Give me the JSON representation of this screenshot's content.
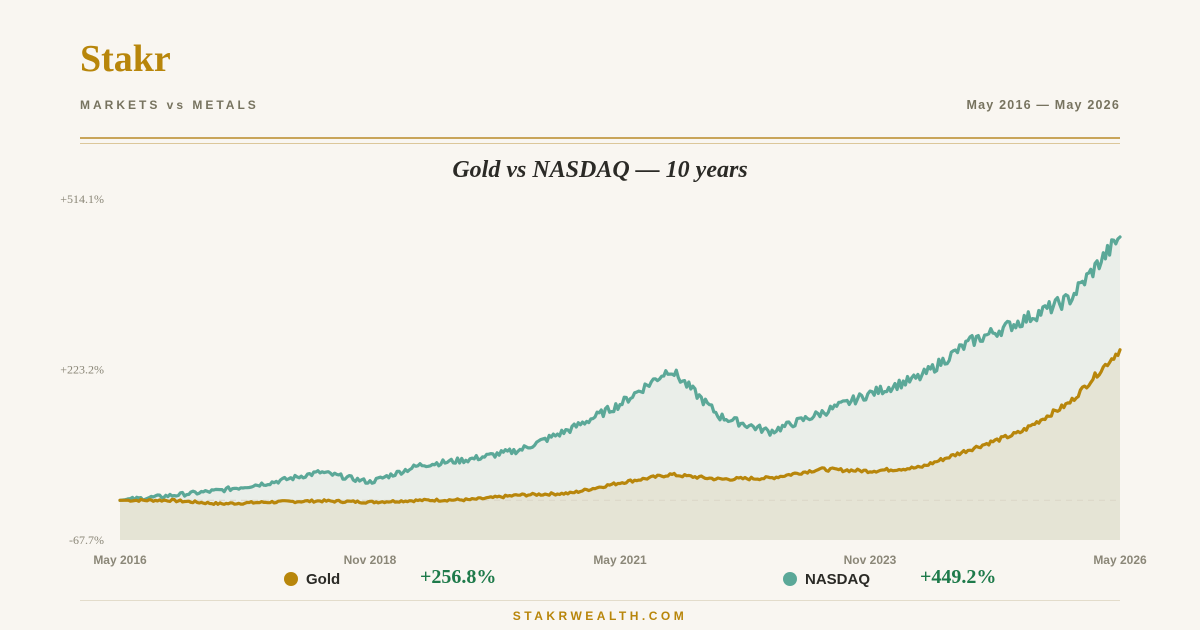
{
  "header": {
    "brand": "Stakr",
    "subtitle": "MARKETS vs METALS",
    "date_range": "May 2016 — May 2026"
  },
  "footer": {
    "site": "STAKRWEALTH.COM"
  },
  "colors": {
    "gold": "#b8860b",
    "nasdaq": "#5ba898",
    "positive": "#1e7a4a",
    "accent": "#c9a55a",
    "background": "#f9f6f1"
  },
  "legend": [
    {
      "label": "Gold",
      "value": "+256.8%",
      "color": "#b8860b"
    },
    {
      "label": "NASDAQ",
      "value": "+449.2%",
      "color": "#5ba898"
    }
  ],
  "chart_data": {
    "type": "line",
    "title": "Gold vs NASDAQ — 10 years",
    "xlabel": "",
    "ylabel": "",
    "y_unit": "%",
    "ylim": [
      -67.7,
      514.1
    ],
    "y_ticks": [
      "+514.1%",
      "+223.2%",
      "-67.7%"
    ],
    "y_tick_values": [
      514.1,
      223.2,
      -67.7
    ],
    "x_ticks": [
      "May 2016",
      "Nov 2018",
      "May 2021",
      "Nov 2023",
      "May 2026"
    ],
    "baseline": 0,
    "grid": false,
    "legend_position": "bottom",
    "x": [
      "2016-05",
      "2016-11",
      "2017-05",
      "2017-11",
      "2018-05",
      "2018-11",
      "2019-05",
      "2019-11",
      "2020-05",
      "2020-11",
      "2021-05",
      "2021-11",
      "2022-05",
      "2022-11",
      "2023-05",
      "2023-11",
      "2024-05",
      "2024-11",
      "2025-05",
      "2025-11",
      "2026-05"
    ],
    "series": [
      {
        "name": "Gold",
        "values": [
          0,
          0,
          -6,
          -3,
          -1,
          -3,
          0,
          1,
          9,
          12,
          30,
          44,
          36,
          38,
          53,
          50,
          56,
          87,
          116,
          167,
          256.8
        ]
      },
      {
        "name": "NASDAQ",
        "values": [
          0,
          8,
          17,
          30,
          48,
          31,
          60,
          70,
          86,
          121,
          164,
          224,
          143,
          117,
          148,
          182,
          210,
          270,
          305,
          344,
          449.2
        ]
      }
    ]
  }
}
